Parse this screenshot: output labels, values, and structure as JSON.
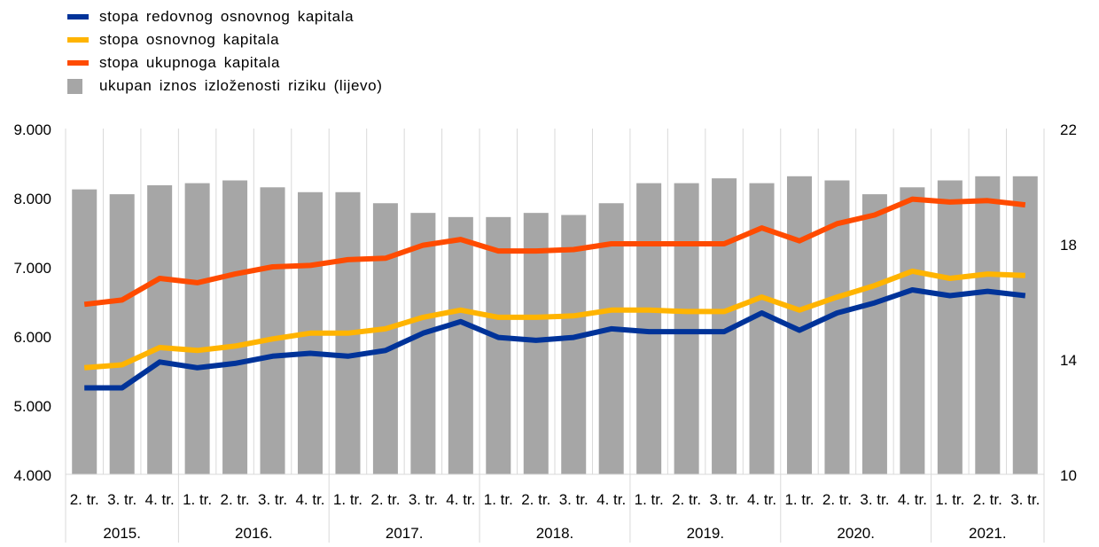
{
  "chart_data": {
    "type": "bar+line",
    "categories": [
      "2. tr.",
      "3. tr.",
      "4. tr.",
      "1. tr.",
      "2. tr.",
      "3. tr.",
      "4. tr.",
      "1. tr.",
      "2. tr.",
      "3. tr.",
      "4. tr.",
      "1. tr.",
      "2. tr.",
      "3. tr.",
      "4. tr.",
      "1. tr.",
      "2. tr.",
      "3. tr.",
      "4. tr.",
      "1. tr.",
      "2. tr.",
      "3. tr.",
      "4. tr.",
      "1. tr.",
      "2. tr.",
      "3. tr."
    ],
    "years": [
      {
        "label": "2015.",
        "count": 3
      },
      {
        "label": "2016.",
        "count": 4
      },
      {
        "label": "2017.",
        "count": 4
      },
      {
        "label": "2018.",
        "count": 4
      },
      {
        "label": "2019.",
        "count": 4
      },
      {
        "label": "2020.",
        "count": 4
      },
      {
        "label": "2021.",
        "count": 3
      }
    ],
    "bars": {
      "name": "ukupan iznos izloženosti riziku (lijevo)",
      "color": "#a6a6a6",
      "axis": "left",
      "values": [
        8120,
        8050,
        8180,
        8210,
        8250,
        8150,
        8080,
        8080,
        7920,
        7780,
        7720,
        7720,
        7780,
        7750,
        7920,
        8210,
        8210,
        8280,
        8210,
        8310,
        8250,
        8050,
        8150,
        8250,
        8310,
        8310
      ]
    },
    "series": [
      {
        "name": "stopa redovnog osnovnog kapitala",
        "color": "#003399",
        "axis": "right",
        "values": [
          13.0,
          13.0,
          13.9,
          13.7,
          13.85,
          14.1,
          14.2,
          14.1,
          14.3,
          14.9,
          15.3,
          14.75,
          14.65,
          14.75,
          15.05,
          14.95,
          14.95,
          14.95,
          15.6,
          15.0,
          15.6,
          15.95,
          16.4,
          16.2,
          16.35,
          16.2
        ]
      },
      {
        "name": "stopa osnovnog kapitala",
        "color": "#ffb400",
        "axis": "right",
        "values": [
          13.7,
          13.8,
          14.4,
          14.3,
          14.45,
          14.7,
          14.9,
          14.9,
          15.05,
          15.45,
          15.7,
          15.45,
          15.45,
          15.5,
          15.7,
          15.7,
          15.65,
          15.65,
          16.15,
          15.7,
          16.15,
          16.55,
          17.05,
          16.8,
          16.95,
          16.9
        ]
      },
      {
        "name": "stopa ukupnoga kapitala",
        "color": "#ff4b00",
        "axis": "right",
        "values": [
          15.9,
          16.05,
          16.8,
          16.65,
          16.95,
          17.2,
          17.25,
          17.45,
          17.5,
          17.95,
          18.15,
          17.75,
          17.75,
          17.8,
          18.0,
          18.0,
          18.0,
          18.0,
          18.55,
          18.1,
          18.7,
          19.0,
          19.55,
          19.45,
          19.5,
          19.35
        ]
      }
    ],
    "left_axis": {
      "min": 4000,
      "max": 9000,
      "ticks": [
        "4.000",
        "5.000",
        "6.000",
        "7.000",
        "8.000",
        "9.000"
      ]
    },
    "right_axis": {
      "min": 10,
      "max": 22,
      "ticks": [
        "10",
        "14",
        "18",
        "22"
      ]
    },
    "grid": "vertical",
    "legend_position": "top-left"
  }
}
